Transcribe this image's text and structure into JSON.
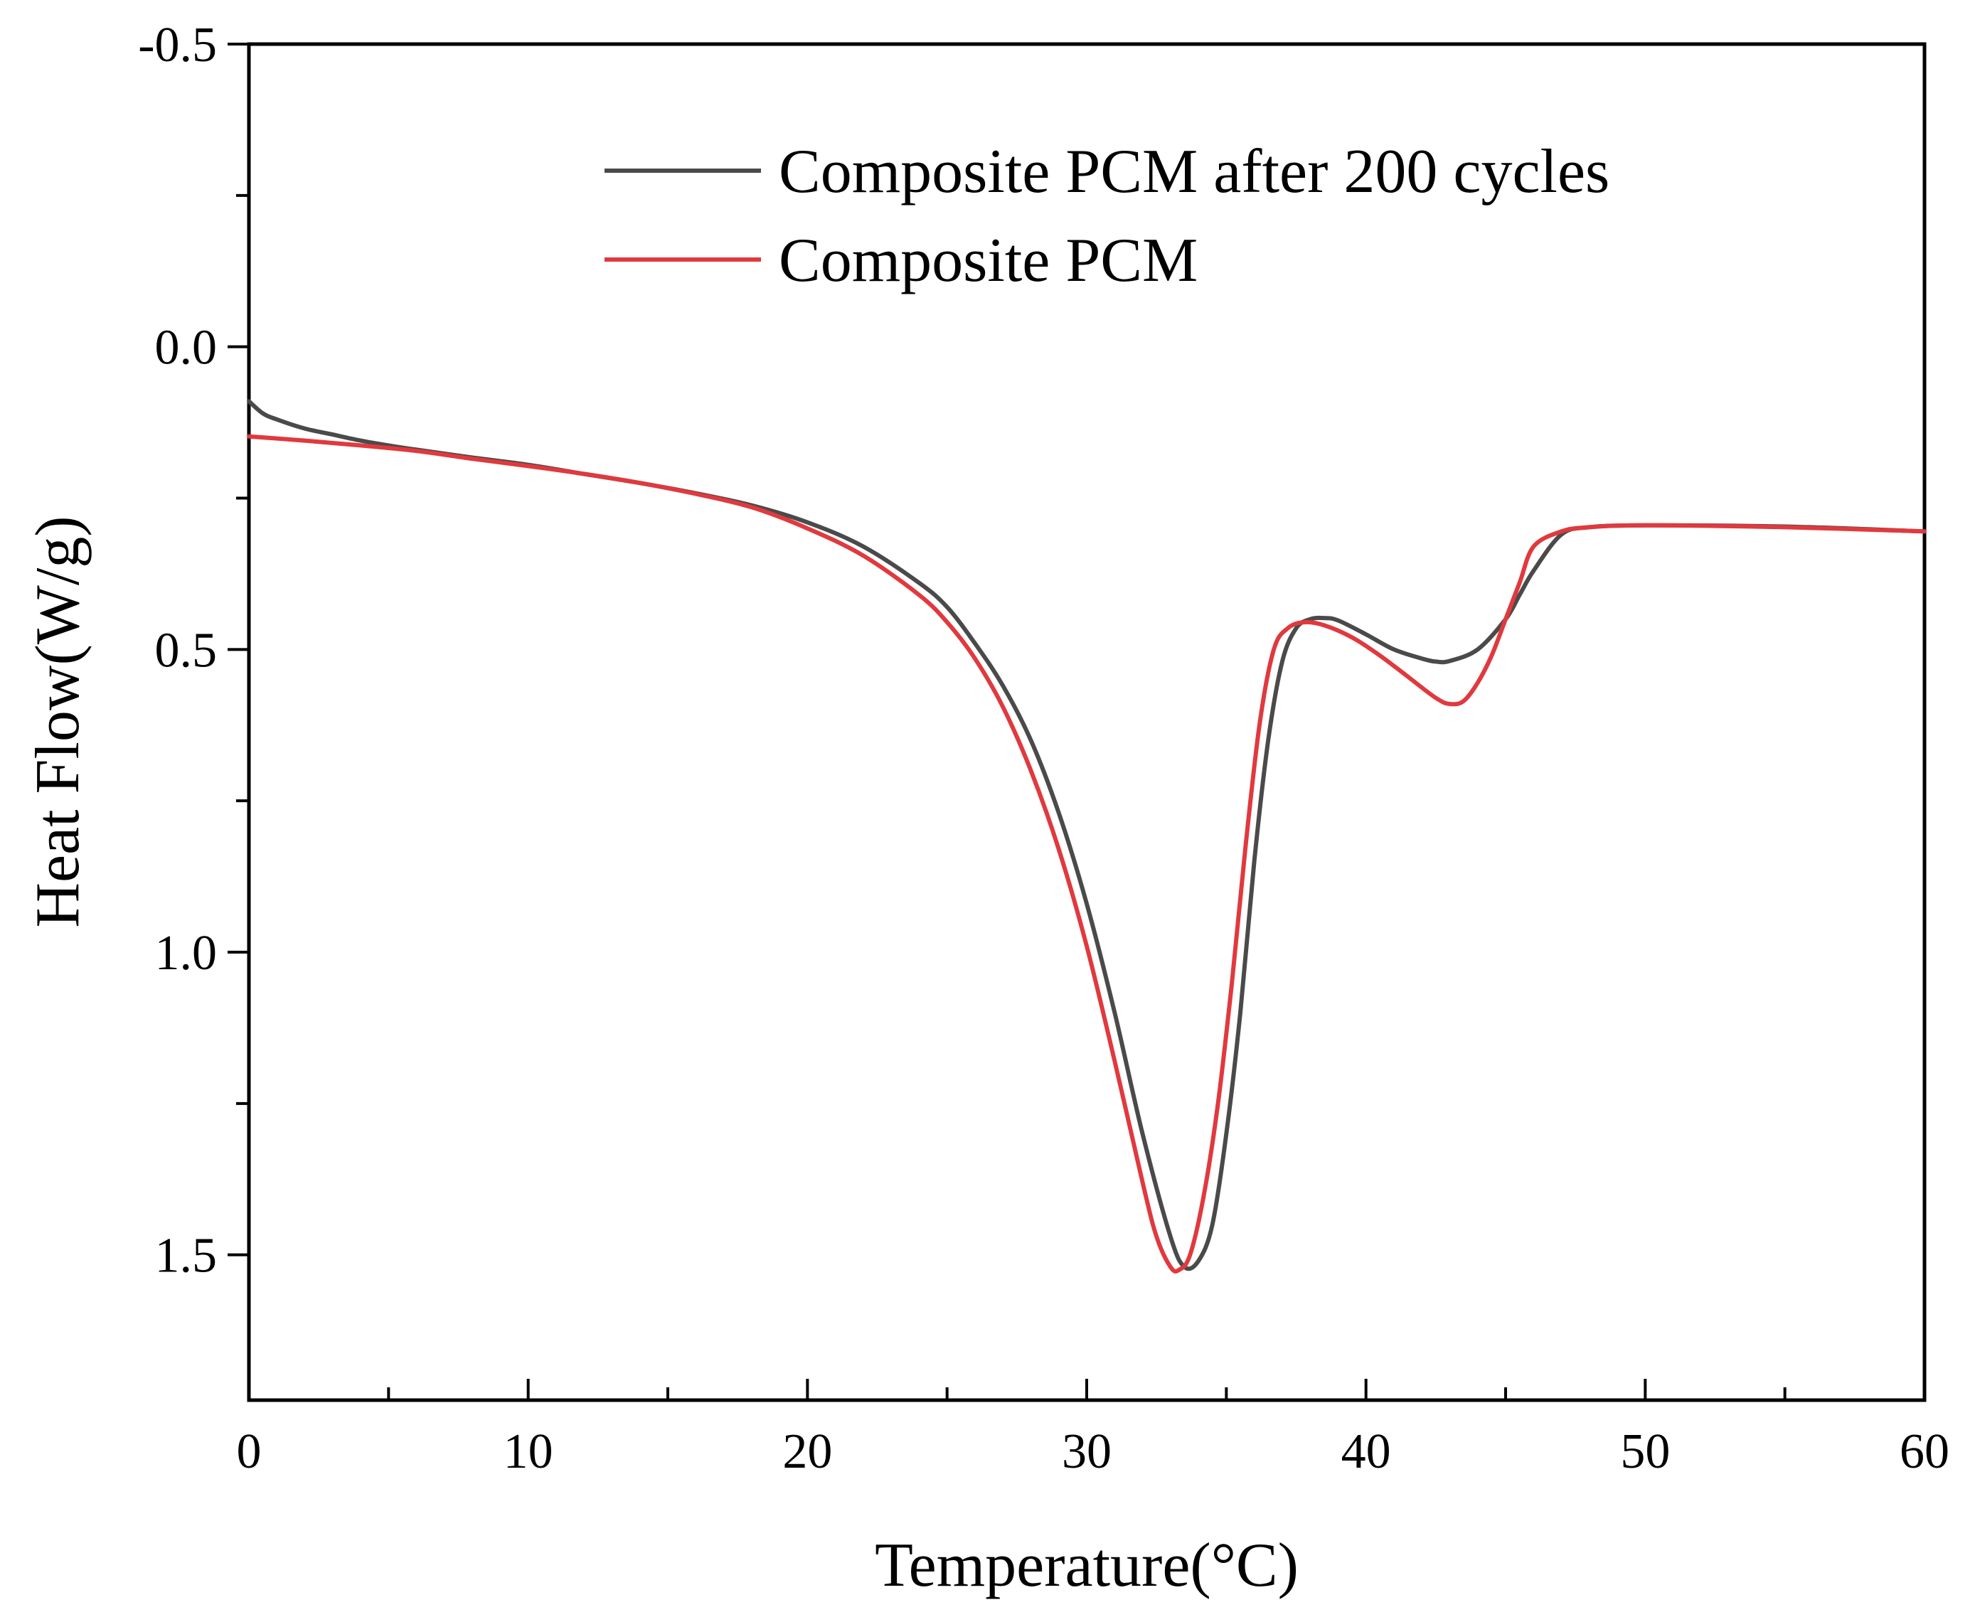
{
  "chart_data": {
    "type": "line",
    "title": "",
    "xlabel": "Temperature(°C)",
    "ylabel": "Heat Flow(W/g)",
    "xlim": [
      0,
      60
    ],
    "ylim": [
      -0.5,
      1.74
    ],
    "y_inverted": true,
    "grid": false,
    "legend_position": "top-center",
    "x_ticks": [
      0,
      10,
      20,
      30,
      40,
      50,
      60
    ],
    "x_tick_labels": [
      "0",
      "10",
      "20",
      "30",
      "40",
      "50",
      "60"
    ],
    "y_ticks": [
      -0.5,
      0.0,
      0.5,
      1.0,
      1.5
    ],
    "y_tick_labels": [
      "-0.5",
      "0.0",
      "0.5",
      "1.0",
      "1.5"
    ],
    "series": [
      {
        "name": "Composite PCM after 200 cycles",
        "color": "#4a4a4a",
        "points": [
          [
            0,
            0.09
          ],
          [
            0.5,
            0.11
          ],
          [
            1,
            0.12
          ],
          [
            2,
            0.135
          ],
          [
            3,
            0.145
          ],
          [
            4,
            0.155
          ],
          [
            5,
            0.163
          ],
          [
            6,
            0.17
          ],
          [
            8,
            0.183
          ],
          [
            10,
            0.195
          ],
          [
            12,
            0.21
          ],
          [
            14,
            0.225
          ],
          [
            16,
            0.242
          ],
          [
            18,
            0.262
          ],
          [
            20,
            0.29
          ],
          [
            22,
            0.33
          ],
          [
            24,
            0.39
          ],
          [
            25,
            0.43
          ],
          [
            26,
            0.49
          ],
          [
            27,
            0.56
          ],
          [
            28,
            0.65
          ],
          [
            29,
            0.77
          ],
          [
            30,
            0.92
          ],
          [
            31,
            1.1
          ],
          [
            32,
            1.3
          ],
          [
            33,
            1.47
          ],
          [
            33.5,
            1.52
          ],
          [
            34,
            1.51
          ],
          [
            34.5,
            1.45
          ],
          [
            35,
            1.3
          ],
          [
            35.5,
            1.1
          ],
          [
            36,
            0.85
          ],
          [
            36.5,
            0.65
          ],
          [
            37,
            0.52
          ],
          [
            37.5,
            0.465
          ],
          [
            38,
            0.45
          ],
          [
            38.5,
            0.448
          ],
          [
            39,
            0.452
          ],
          [
            40,
            0.475
          ],
          [
            41,
            0.5
          ],
          [
            42,
            0.515
          ],
          [
            42.5,
            0.52
          ],
          [
            43,
            0.519
          ],
          [
            44,
            0.5
          ],
          [
            45,
            0.45
          ],
          [
            45.5,
            0.41
          ],
          [
            46,
            0.37
          ],
          [
            47,
            0.31
          ],
          [
            48,
            0.298
          ],
          [
            50,
            0.295
          ],
          [
            55,
            0.297
          ],
          [
            60,
            0.305
          ]
        ]
      },
      {
        "name": "Composite PCM",
        "color": "#e0393e",
        "points": [
          [
            0,
            0.148
          ],
          [
            2,
            0.155
          ],
          [
            4,
            0.163
          ],
          [
            6,
            0.172
          ],
          [
            8,
            0.185
          ],
          [
            10,
            0.197
          ],
          [
            12,
            0.21
          ],
          [
            14,
            0.225
          ],
          [
            16,
            0.243
          ],
          [
            18,
            0.265
          ],
          [
            20,
            0.3
          ],
          [
            22,
            0.345
          ],
          [
            24,
            0.41
          ],
          [
            25,
            0.455
          ],
          [
            26,
            0.515
          ],
          [
            27,
            0.595
          ],
          [
            28,
            0.7
          ],
          [
            29,
            0.83
          ],
          [
            30,
            0.99
          ],
          [
            31,
            1.18
          ],
          [
            32,
            1.38
          ],
          [
            32.5,
            1.47
          ],
          [
            33,
            1.52
          ],
          [
            33.3,
            1.525
          ],
          [
            33.7,
            1.5
          ],
          [
            34.2,
            1.4
          ],
          [
            34.7,
            1.25
          ],
          [
            35.2,
            1.05
          ],
          [
            35.7,
            0.82
          ],
          [
            36.2,
            0.62
          ],
          [
            36.7,
            0.5
          ],
          [
            37.2,
            0.465
          ],
          [
            37.8,
            0.455
          ],
          [
            38.5,
            0.46
          ],
          [
            39.5,
            0.48
          ],
          [
            40.5,
            0.51
          ],
          [
            41.5,
            0.545
          ],
          [
            42.5,
            0.58
          ],
          [
            43,
            0.59
          ],
          [
            43.5,
            0.585
          ],
          [
            44,
            0.555
          ],
          [
            44.5,
            0.51
          ],
          [
            45,
            0.45
          ],
          [
            45.5,
            0.39
          ],
          [
            46,
            0.33
          ],
          [
            47,
            0.305
          ],
          [
            48,
            0.298
          ],
          [
            50,
            0.295
          ],
          [
            55,
            0.298
          ],
          [
            60,
            0.305
          ]
        ]
      }
    ]
  }
}
